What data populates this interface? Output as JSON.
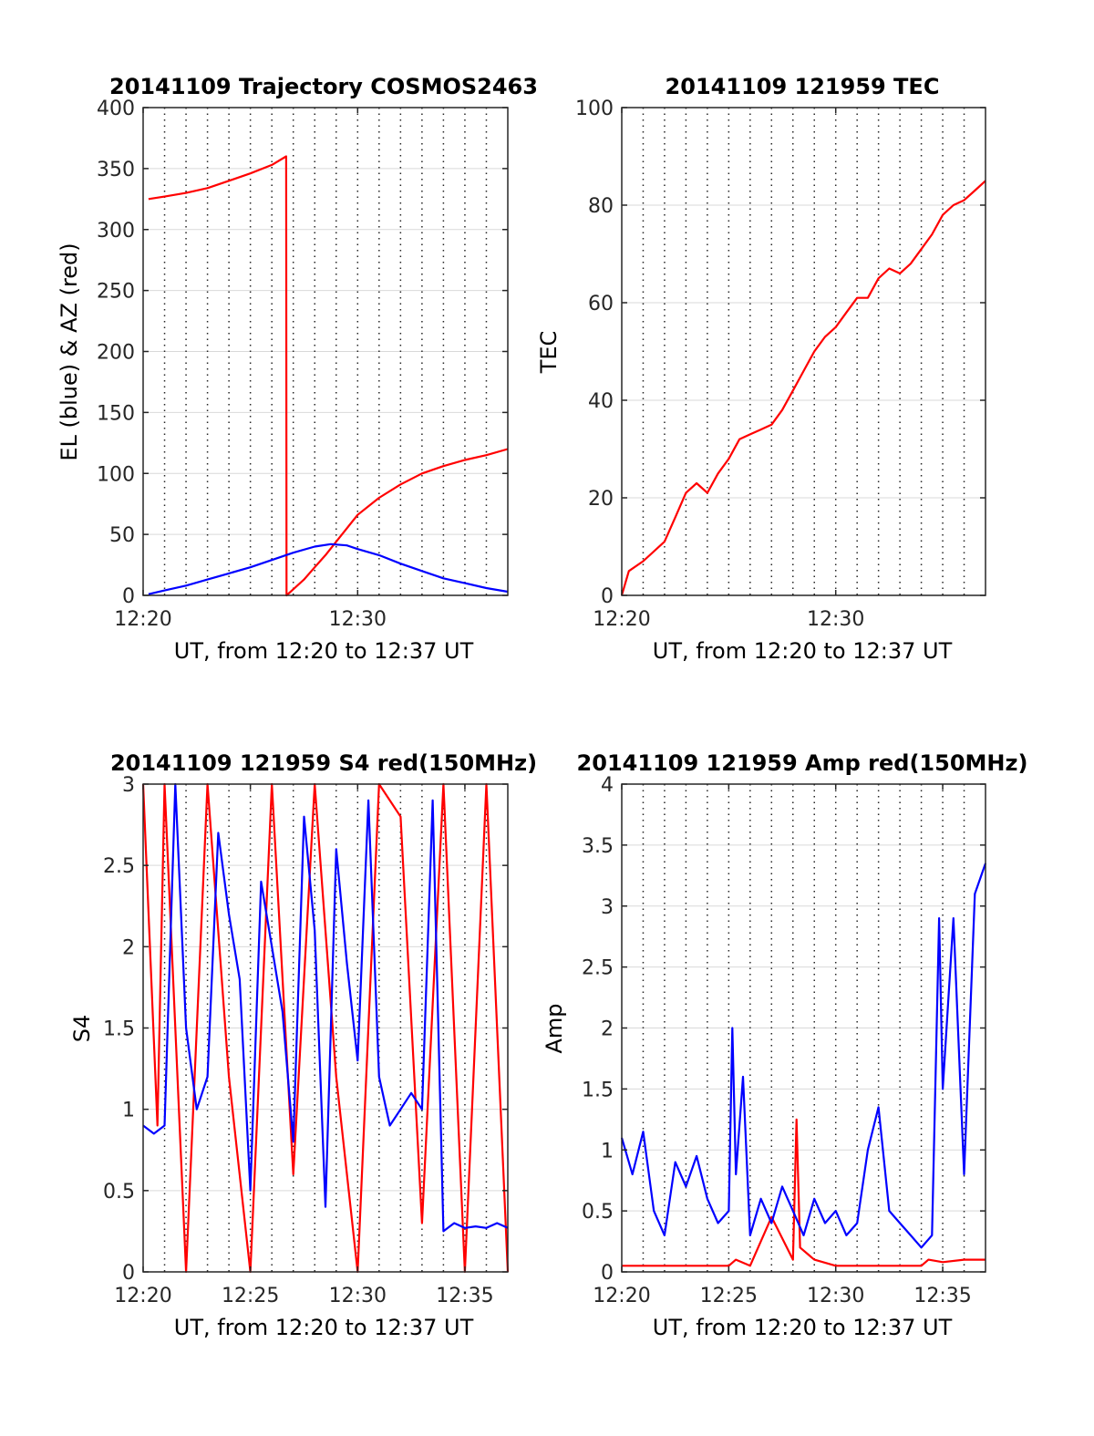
{
  "figure": {
    "background": "#ffffff",
    "colors": {
      "red": "#ff0000",
      "blue": "#0000ff",
      "grid": "#d9d9d9",
      "axis": "#262626"
    }
  },
  "chart_data": [
    {
      "id": "trajectory",
      "type": "line",
      "title": "20141109 Trajectory COSMOS2463",
      "xlabel": "UT, from 12:20 to 12:37 UT",
      "ylabel": "EL (blue) & AZ (red)",
      "xlim": [
        "12:20",
        "12:37"
      ],
      "ylim": [
        0,
        400
      ],
      "xticks": [
        "12:20",
        "12:30"
      ],
      "yticks": [
        0,
        50,
        100,
        150,
        200,
        250,
        300,
        350,
        400
      ],
      "grid": true,
      "series": [
        {
          "color": "#ff0000",
          "x": [
            "12:20:15",
            "12:21",
            "12:22",
            "12:23",
            "12:24",
            "12:25",
            "12:26",
            "12:26:40",
            "12:26:41",
            "12:27",
            "12:27:30",
            "12:28",
            "12:28:30",
            "12:29",
            "12:29:30",
            "12:30",
            "12:31",
            "12:32",
            "12:33",
            "12:34",
            "12:35",
            "12:36",
            "12:37"
          ],
          "values": [
            325,
            327,
            330,
            334,
            340,
            346,
            353,
            360,
            0,
            5,
            13,
            23,
            33,
            44,
            55,
            66,
            80,
            91,
            100,
            106,
            111,
            115,
            120
          ]
        },
        {
          "color": "#0000ff",
          "x": [
            "12:20:15",
            "12:21",
            "12:22",
            "12:23",
            "12:24",
            "12:25",
            "12:26",
            "12:27",
            "12:28",
            "12:28:45",
            "12:29:30",
            "12:30",
            "12:31",
            "12:32",
            "12:33",
            "12:34",
            "12:35",
            "12:36",
            "12:37"
          ],
          "values": [
            1,
            4,
            8,
            13,
            18,
            23,
            29,
            35,
            40,
            42,
            41,
            38,
            33,
            26,
            20,
            14,
            10,
            6,
            3
          ]
        }
      ]
    },
    {
      "id": "tec",
      "type": "line",
      "title": "20141109 121959 TEC",
      "xlabel": "UT, from 12:20 to 12:37 UT",
      "ylabel": "TEC",
      "xlim": [
        "12:20",
        "12:37"
      ],
      "ylim": [
        0,
        100
      ],
      "xticks": [
        "12:20",
        "12:30"
      ],
      "yticks": [
        0,
        20,
        40,
        60,
        80,
        100
      ],
      "grid": true,
      "series": [
        {
          "color": "#ff0000",
          "x": [
            "12:20",
            "12:20:20",
            "12:21",
            "12:22",
            "12:22:30",
            "12:23",
            "12:23:30",
            "12:24",
            "12:24:30",
            "12:25",
            "12:25:30",
            "12:26",
            "12:26:30",
            "12:27",
            "12:27:30",
            "12:28",
            "12:28:30",
            "12:29",
            "12:29:30",
            "12:30",
            "12:30:30",
            "12:31",
            "12:31:30",
            "12:32",
            "12:32:30",
            "12:33",
            "12:33:30",
            "12:34",
            "12:34:30",
            "12:35",
            "12:35:30",
            "12:36",
            "12:36:30",
            "12:37"
          ],
          "values": [
            0,
            5,
            7,
            11,
            16,
            21,
            23,
            21,
            25,
            28,
            32,
            33,
            34,
            35,
            38,
            42,
            46,
            50,
            53,
            55,
            58,
            61,
            61,
            65,
            67,
            66,
            68,
            71,
            74,
            78,
            80,
            81,
            83,
            85
          ]
        }
      ]
    },
    {
      "id": "s4",
      "type": "line",
      "title": "20141109 121959 S4 red(150MHz)",
      "xlabel": "UT, from 12:20 to 12:37 UT",
      "ylabel": "S4",
      "xlim": [
        "12:20",
        "12:37"
      ],
      "ylim": [
        0,
        3
      ],
      "xticks": [
        "12:20",
        "12:25",
        "12:30",
        "12:35"
      ],
      "yticks": [
        0,
        0.5,
        1,
        1.5,
        2,
        2.5,
        3
      ],
      "grid": true,
      "series": [
        {
          "color": "#ff0000",
          "x": [
            "12:20",
            "12:20:40",
            "12:21",
            "12:22",
            "12:23",
            "12:24",
            "12:25",
            "12:26",
            "12:27",
            "12:28",
            "12:29",
            "12:30",
            "12:31",
            "12:32",
            "12:33",
            "12:34",
            "12:35",
            "12:36",
            "12:37"
          ],
          "values": [
            3,
            0.9,
            3,
            0,
            3,
            1.2,
            0,
            3,
            0.6,
            3,
            1.2,
            0,
            3,
            2.8,
            0.3,
            3,
            0,
            3,
            0
          ]
        },
        {
          "color": "#0000ff",
          "x": [
            "12:20",
            "12:20:30",
            "12:21",
            "12:21:30",
            "12:22",
            "12:22:30",
            "12:23",
            "12:23:30",
            "12:24",
            "12:24:30",
            "12:25",
            "12:25:30",
            "12:26",
            "12:26:30",
            "12:27",
            "12:27:30",
            "12:28",
            "12:28:30",
            "12:29",
            "12:29:30",
            "12:30",
            "12:30:30",
            "12:31",
            "12:31:30",
            "12:32",
            "12:32:30",
            "12:33",
            "12:33:30",
            "12:34",
            "12:34:30",
            "12:35",
            "12:35:30",
            "12:36",
            "12:36:30",
            "12:37"
          ],
          "values": [
            0.9,
            0.85,
            0.9,
            3,
            1.5,
            1.0,
            1.2,
            2.7,
            2.2,
            1.8,
            0.5,
            2.4,
            2.0,
            1.6,
            0.8,
            2.8,
            2.1,
            0.4,
            2.6,
            1.9,
            1.3,
            2.9,
            1.2,
            0.9,
            1.0,
            1.1,
            1.0,
            2.9,
            0.25,
            0.3,
            0.27,
            0.28,
            0.27,
            0.3,
            0.27
          ]
        }
      ]
    },
    {
      "id": "amp",
      "type": "line",
      "title": "20141109 121959 Amp red(150MHz)",
      "xlabel": "UT, from 12:20 to 12:37 UT",
      "ylabel": "Amp",
      "xlim": [
        "12:20",
        "12:37"
      ],
      "ylim": [
        0,
        4
      ],
      "xticks": [
        "12:20",
        "12:25",
        "12:30",
        "12:35"
      ],
      "yticks": [
        0,
        0.5,
        1,
        1.5,
        2,
        2.5,
        3,
        3.5,
        4
      ],
      "grid": true,
      "series": [
        {
          "color": "#ff0000",
          "x": [
            "12:20",
            "12:25",
            "12:25:20",
            "12:26",
            "12:27",
            "12:28",
            "12:28:10",
            "12:28:20",
            "12:29",
            "12:30",
            "12:34",
            "12:34:20",
            "12:35",
            "12:36",
            "12:37"
          ],
          "values": [
            0.05,
            0.05,
            0.1,
            0.05,
            0.45,
            0.1,
            1.25,
            0.2,
            0.1,
            0.05,
            0.05,
            0.1,
            0.08,
            0.1,
            0.1
          ]
        },
        {
          "color": "#0000ff",
          "x": [
            "12:20",
            "12:20:30",
            "12:21",
            "12:21:30",
            "12:22",
            "12:22:30",
            "12:23",
            "12:23:30",
            "12:24",
            "12:24:30",
            "12:25",
            "12:25:10",
            "12:25:20",
            "12:25:40",
            "12:26",
            "12:26:30",
            "12:27",
            "12:27:30",
            "12:28",
            "12:28:30",
            "12:29",
            "12:29:30",
            "12:30",
            "12:30:30",
            "12:31",
            "12:31:30",
            "12:32",
            "12:32:30",
            "12:33",
            "12:33:30",
            "12:34",
            "12:34:30",
            "12:34:50",
            "12:35",
            "12:35:30",
            "12:36",
            "12:36:30",
            "12:37"
          ],
          "values": [
            1.1,
            0.8,
            1.15,
            0.5,
            0.3,
            0.9,
            0.7,
            0.95,
            0.6,
            0.4,
            0.5,
            2.0,
            0.8,
            1.6,
            0.3,
            0.6,
            0.4,
            0.7,
            0.5,
            0.3,
            0.6,
            0.4,
            0.5,
            0.3,
            0.4,
            1.0,
            1.35,
            0.5,
            0.4,
            0.3,
            0.2,
            0.3,
            2.9,
            1.5,
            2.9,
            0.8,
            3.1,
            3.35
          ]
        }
      ]
    }
  ]
}
